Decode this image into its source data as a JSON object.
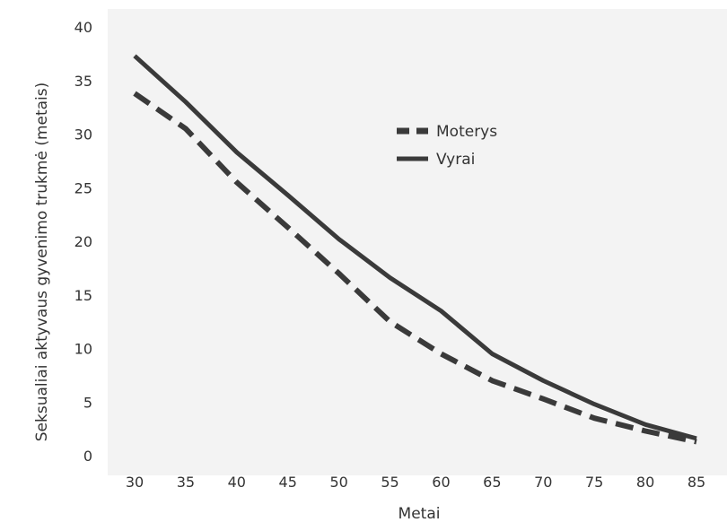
{
  "chart_data": {
    "type": "line",
    "title": "",
    "xlabel": "Metai",
    "ylabel": "Seksualiai aktyvaus gyvenimo trukmė (metais)",
    "x": [
      30,
      35,
      40,
      45,
      50,
      55,
      60,
      65,
      70,
      75,
      80,
      85
    ],
    "xlim": [
      30,
      85
    ],
    "ylim": [
      0,
      40
    ],
    "yticks": [
      0,
      5,
      10,
      15,
      20,
      25,
      30,
      35,
      40
    ],
    "grid": false,
    "legend_position": "center",
    "series": [
      {
        "name": "Moterys",
        "style": "dashed",
        "color": "#3a3a3a",
        "values": [
          33.8,
          30.5,
          25.5,
          21.3,
          17.0,
          12.5,
          9.5,
          7.0,
          5.3,
          3.5,
          2.3,
          1.3
        ]
      },
      {
        "name": "Vyrai",
        "style": "solid",
        "color": "#3a3a3a",
        "values": [
          37.3,
          33.0,
          28.3,
          24.3,
          20.2,
          16.6,
          13.5,
          9.5,
          7.0,
          4.8,
          2.9,
          1.6
        ]
      }
    ],
    "plot_background": "#f3f3f3",
    "page_background": "#ffffff"
  }
}
